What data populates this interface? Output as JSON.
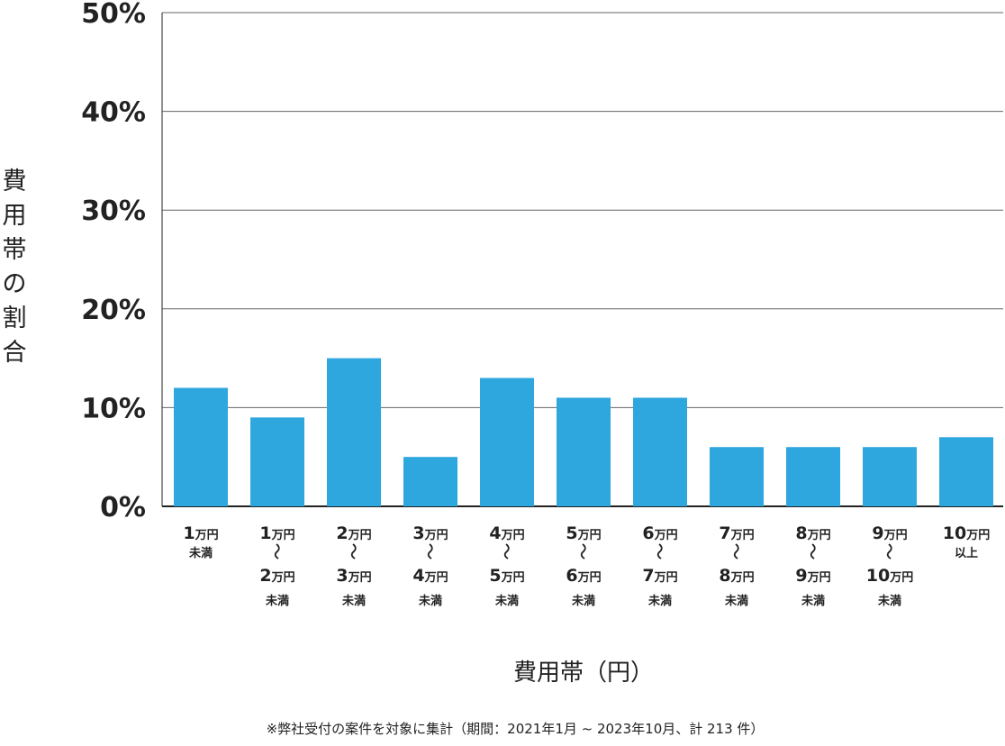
{
  "chart_data": {
    "type": "bar",
    "ylabel": "費用帯の割合",
    "xlabel": "費用帯（円）",
    "footnote": "※弊社受付の案件を対象に集計（期間：2021年1月 ~ 2023年10月、計 213 件）",
    "ylim": [
      0,
      50
    ],
    "yticks": [
      "0%",
      "10%",
      "20%",
      "30%",
      "40%",
      "50%"
    ],
    "grid": true,
    "bar_color": "#2ea6de",
    "categories": [
      {
        "lines": [
          "1万円",
          "未満"
        ]
      },
      {
        "lines": [
          "1万円",
          "~",
          "2万円",
          "未満"
        ]
      },
      {
        "lines": [
          "2万円",
          "~",
          "3万円",
          "未満"
        ]
      },
      {
        "lines": [
          "3万円",
          "~",
          "4万円",
          "未満"
        ]
      },
      {
        "lines": [
          "4万円",
          "~",
          "5万円",
          "未満"
        ]
      },
      {
        "lines": [
          "5万円",
          "~",
          "6万円",
          "未満"
        ]
      },
      {
        "lines": [
          "6万円",
          "~",
          "7万円",
          "未満"
        ]
      },
      {
        "lines": [
          "7万円",
          "~",
          "8万円",
          "未満"
        ]
      },
      {
        "lines": [
          "8万円",
          "~",
          "9万円",
          "未満"
        ]
      },
      {
        "lines": [
          "9万円",
          "~",
          "10万円",
          "未満"
        ]
      },
      {
        "lines": [
          "10万円",
          "以上"
        ]
      }
    ],
    "values": [
      12,
      9,
      15,
      5,
      13,
      11,
      11,
      6,
      6,
      6,
      7
    ]
  }
}
